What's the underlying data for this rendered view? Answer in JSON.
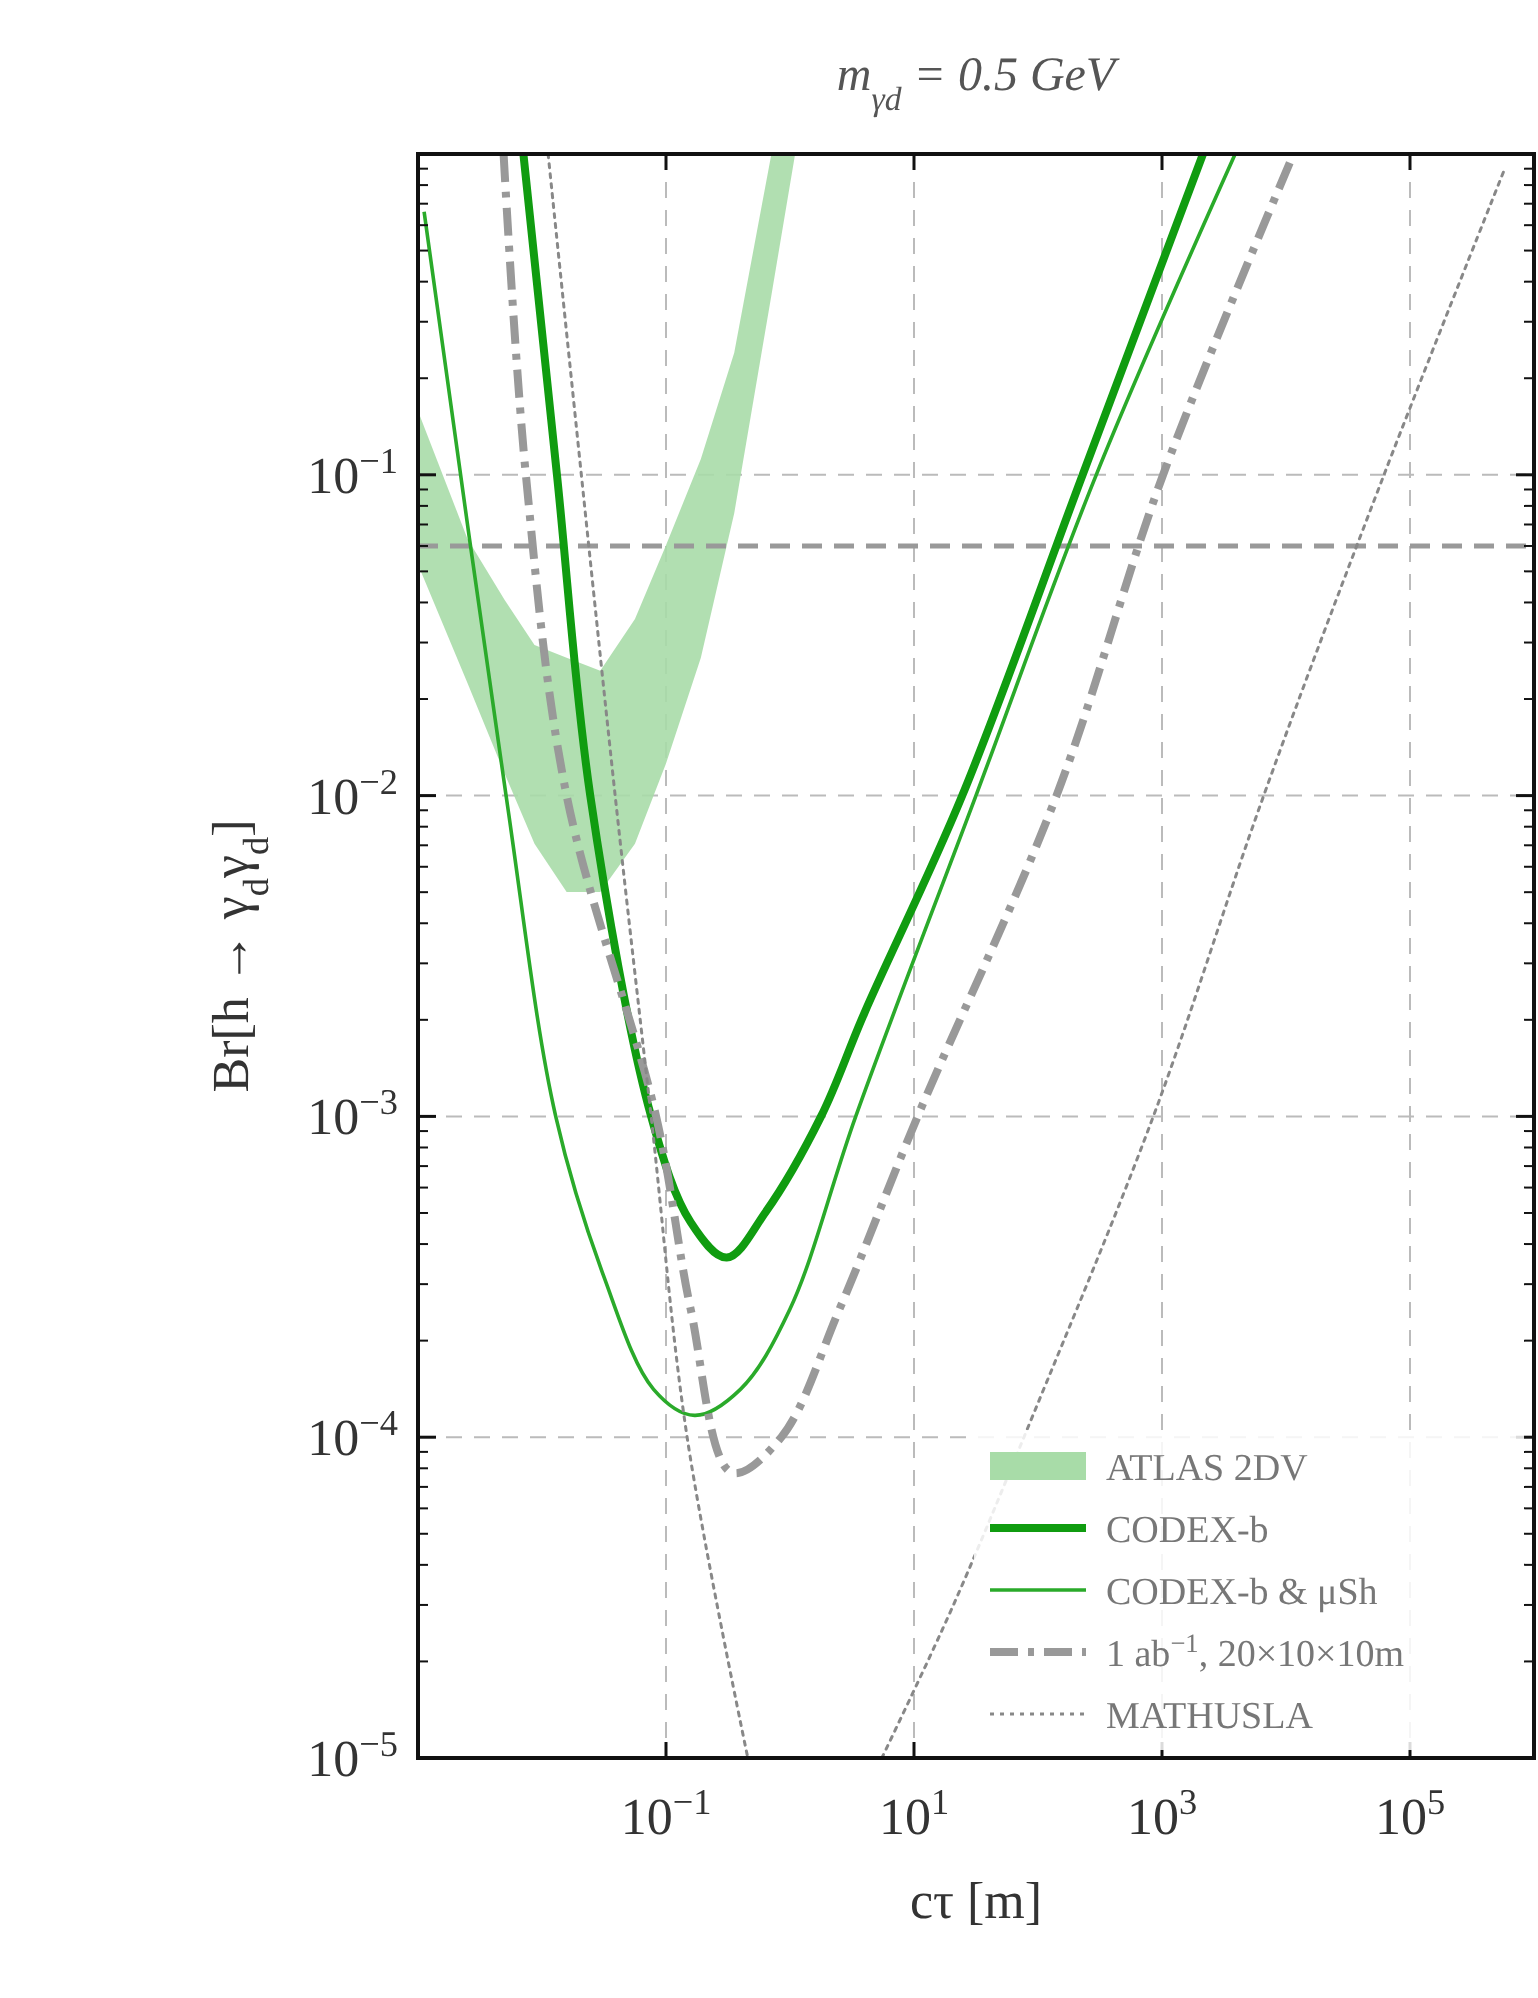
{
  "chart_data": {
    "type": "line",
    "title": "m$_{γd}$ = 0.5 GeV",
    "xlabel": "cτ [m]",
    "ylabel": "Br[h → γ$_{d}$γ$_{d}$]",
    "log": "xy",
    "grid": true,
    "legend": "bottom right",
    "xlim": [
      0.001,
      1000000
    ],
    "ylim": [
      1e-05,
      1
    ],
    "xticks": [
      {
        "value": 0.1,
        "label": "10$^{−1}$"
      },
      {
        "value": 10,
        "label": "10$^{1}$"
      },
      {
        "value": 1000,
        "label": "10$^{3}$"
      },
      {
        "value": 100000,
        "label": "10$^{5}$"
      }
    ],
    "yticks": [
      {
        "value": 1e-05,
        "label": "10$^{−5}$"
      },
      {
        "value": 0.0001,
        "label": "10$^{−4}$"
      },
      {
        "value": 0.001,
        "label": "10$^{−3}$"
      },
      {
        "value": 0.01,
        "label": "10$^{−2}$"
      },
      {
        "value": 0.1,
        "label": "10$^{−1}$"
      }
    ],
    "ref_lines": [
      {
        "axis": "y",
        "value": 0.06,
        "color": "#999999",
        "line_style": "dashed"
      }
    ],
    "series": [
      {
        "name": "ATLAS 2DV",
        "type": "area",
        "color": "#a8dca8",
        "x": [
          0.001,
          0.00251,
          0.005,
          0.0087,
          0.0158,
          0.0295,
          0.0562,
          0.1,
          0.191,
          0.355,
          0.708,
          1.1
        ],
        "values": [
          null,
          null,
          null,
          null,
          null,
          null,
          null,
          null,
          null,
          null,
          null,
          null
        ],
        "upper": [
          0.158,
          0.0631,
          0.0407,
          0.0295,
          0.0269,
          0.0245,
          0.0355,
          0.0603,
          0.112,
          0.24,
          1,
          1
        ],
        "lower": [
          0.0525,
          0.0224,
          0.0117,
          0.00708,
          0.00501,
          0.00501,
          0.00708,
          0.0126,
          0.0269,
          0.0759,
          0.363,
          1
        ]
      },
      {
        "name": "CODEX-b",
        "type": "line",
        "color": "#109c10",
        "line_style": "solid",
        "x": [
          0.00708,
          0.0132,
          0.0245,
          0.0759,
          0.158,
          0.309,
          0.631,
          1.78,
          3.98,
          24.5,
          229,
          2140
        ],
        "values": [
          1,
          0.1,
          0.01,
          0.001,
          0.000468,
          0.000363,
          0.000501,
          0.001,
          0.0021,
          0.01,
          0.1,
          1
        ]
      },
      {
        "name": "CODEX-b & μSh",
        "type": "line",
        "color": "#2aaa2a",
        "line_style": "solid",
        "x": [
          0.00112,
          0.00513,
          0.0129,
          0.0316,
          0.0794,
          0.17,
          0.398,
          1,
          3.39,
          31.6,
          295,
          3890
        ],
        "values": [
          0.661,
          0.01,
          0.001,
          0.000316,
          0.000141,
          0.000117,
          0.000141,
          0.000251,
          0.001,
          0.01,
          0.1,
          1
        ]
      },
      {
        "name": "1 ab$^{−1}$, 20×10×10m",
        "color": "#999999",
        "line_style": "dashdot",
        "x": [
          0.0049,
          0.00741,
          0.0158,
          0.0832,
          0.158,
          0.339,
          0.851,
          2.51,
          10.7,
          141,
          1020,
          11500
        ],
        "values": [
          1,
          0.1,
          0.01,
          0.001,
          0.000251,
          7.76e-05,
          0.0001,
          0.000251,
          0.001,
          0.01,
          0.1,
          1
        ]
      },
      {
        "name": "MATHUSLA",
        "color": "#888888",
        "line_style": "dotted",
        "x": [
          0.0112,
          0.0389,
          0.0759,
          0.148,
          0.457
        ],
        "values": [
          1,
          0.01,
          0.001,
          0.0001,
          1e-05
        ]
      },
      {
        "color": "#888888",
        "line_style": "dotted",
        "x": [
          5.5,
          20.4,
          91,
          851,
          6610,
          61700,
          589000
        ],
        "values": [
          1e-05,
          2.95e-05,
          0.000117,
          0.001,
          0.01,
          0.1,
          0.912
        ]
      }
    ]
  }
}
